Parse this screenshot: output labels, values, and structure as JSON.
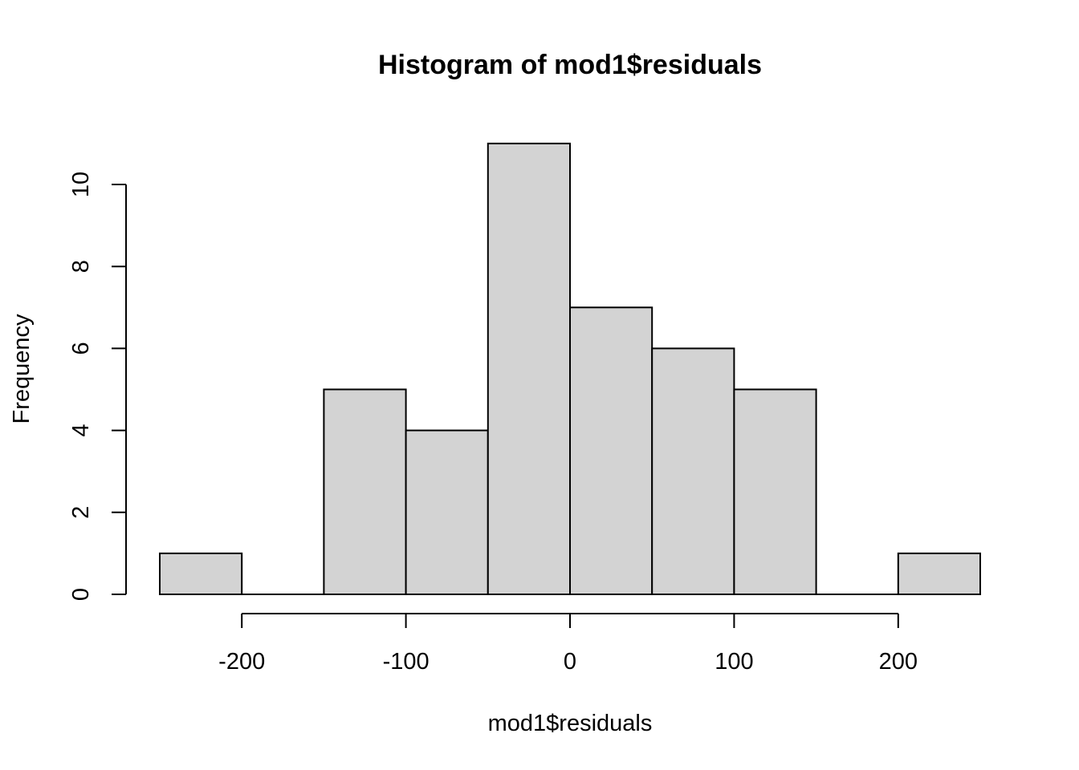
{
  "chart_data": {
    "type": "bar",
    "title": "Histogram of mod1$residuals",
    "xlabel": "mod1$residuals",
    "ylabel": "Frequency",
    "bin_edges": [
      -250,
      -200,
      -150,
      -100,
      -50,
      0,
      50,
      100,
      150,
      200,
      250
    ],
    "values": [
      1,
      0,
      5,
      4,
      11,
      7,
      6,
      5,
      0,
      1
    ],
    "xlim": [
      -250,
      250
    ],
    "ylim": [
      0,
      11
    ],
    "x_ticks": [
      -200,
      -100,
      0,
      100,
      200
    ],
    "x_tick_labels": [
      "-200",
      "-100",
      "0",
      "100",
      "200"
    ],
    "y_ticks": [
      0,
      2,
      4,
      6,
      8,
      10
    ],
    "y_tick_labels": [
      "0",
      "2",
      "4",
      "6",
      "8",
      "10"
    ],
    "bar_fill": "#d3d3d3",
    "bar_stroke": "#000000",
    "grid": false,
    "legend": "none"
  }
}
